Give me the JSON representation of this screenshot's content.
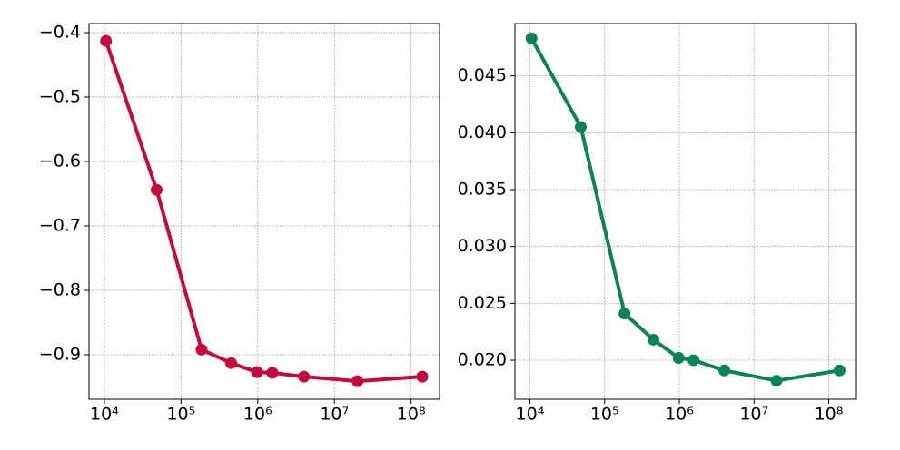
{
  "chart_data": [
    {
      "type": "line",
      "xscale": "log",
      "grid": true,
      "x": [
        10500,
        48000,
        185000,
        450000,
        980000,
        1550000,
        4000000,
        20000000,
        140000000
      ],
      "series": [
        {
          "color": "#c70a3c",
          "values": [
            -0.413,
            -0.644,
            -0.892,
            -0.913,
            -0.927,
            -0.928,
            -0.934,
            -0.941,
            -0.934
          ]
        }
      ],
      "xlim": [
        6300,
        235000000
      ],
      "xticks": [
        {
          "value": 10000,
          "label": "10⁴"
        },
        {
          "value": 100000,
          "label": "10⁵"
        },
        {
          "value": 1000000,
          "label": "10⁶"
        },
        {
          "value": 10000000,
          "label": "10⁷"
        },
        {
          "value": 100000000,
          "label": "10⁸"
        }
      ],
      "ylim": [
        -0.969,
        -0.386
      ],
      "yticks": [
        {
          "value": -0.9,
          "label": "−0.9"
        },
        {
          "value": -0.8,
          "label": "−0.8"
        },
        {
          "value": -0.7,
          "label": "−0.7"
        },
        {
          "value": -0.6,
          "label": "−0.6"
        },
        {
          "value": -0.5,
          "label": "−0.5"
        },
        {
          "value": -0.4,
          "label": "−0.4"
        }
      ]
    },
    {
      "type": "line",
      "xscale": "log",
      "grid": true,
      "x": [
        10500,
        48000,
        185000,
        450000,
        980000,
        1550000,
        4000000,
        20000000,
        140000000
      ],
      "series": [
        {
          "color": "#0a8457",
          "values": [
            0.0483,
            0.0405,
            0.0241,
            0.0218,
            0.0202,
            0.02,
            0.0191,
            0.0182,
            0.0191
          ]
        }
      ],
      "xlim": [
        6300,
        235000000
      ],
      "xticks": [
        {
          "value": 10000,
          "label": "10⁴"
        },
        {
          "value": 100000,
          "label": "10⁵"
        },
        {
          "value": 1000000,
          "label": "10⁶"
        },
        {
          "value": 10000000,
          "label": "10⁷"
        },
        {
          "value": 100000000,
          "label": "10⁸"
        }
      ],
      "ylim": [
        0.01657,
        0.0496
      ],
      "yticks": [
        {
          "value": 0.02,
          "label": "0.020"
        },
        0.025,
        {
          "value": 0.03,
          "label": "0.030"
        },
        0.035,
        {
          "value": 0.04,
          "label": "0.040"
        },
        0.045
      ]
    }
  ]
}
